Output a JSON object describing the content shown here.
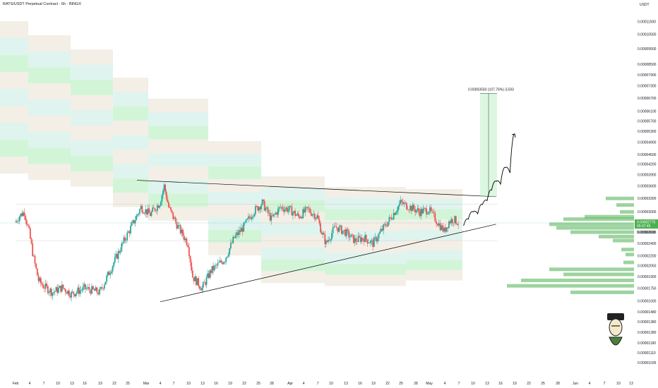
{
  "header": {
    "title": "RATS/USDT Perpetual Contract · 6h · BINGX",
    "currency": "USDT"
  },
  "colors": {
    "up": "#26a69a",
    "down": "#ef5350",
    "band_green": "#9be8a8",
    "band_beige": "#e4dcc8",
    "band_teal": "#b9e6dc",
    "price_badge": "#4caf50",
    "volume_profile": "#4caf50",
    "trendline": "#000000"
  },
  "chart_data": {
    "type": "candlestick",
    "title": "RATS/USDT Perpetual Contract · 6h · BINGX",
    "y_axis": {
      "unit": "USDT",
      "scale": "log",
      "range": [
        9.75e-06,
        0.00013
      ],
      "ticks": [
        "0.00011500",
        "0.00010500",
        "0.00009500",
        "0.00008500",
        "0.00007900",
        "0.00007300",
        "0.00006700",
        "0.00006100",
        "0.00005700",
        "0.00005300",
        "0.00004900",
        "0.00004500",
        "0.00004200",
        "0.00003900",
        "0.00003600",
        "0.00003300",
        "0.00003000",
        "0.00002600",
        "0.00002400",
        "0.00002200",
        "0.00002050",
        "0.00001900",
        "0.00001750",
        "0.00001600",
        "0.00001480",
        "0.00001380",
        "0.00001280",
        "0.00001190",
        "0.00001110",
        "0.00001035"
      ]
    },
    "x_axis": {
      "ticks": [
        "Feb",
        "4",
        "7",
        "10",
        "13",
        "16",
        "19",
        "22",
        "25",
        "Mar",
        "4",
        "7",
        "10",
        "13",
        "16",
        "19",
        "22",
        "25",
        "28",
        "Apr",
        "4",
        "7",
        "10",
        "13",
        "16",
        "19",
        "22",
        "25",
        "28",
        "May",
        "4",
        "7",
        "10",
        "13",
        "16",
        "19",
        "22",
        "25",
        "28",
        "Jun",
        "4",
        "7",
        "10",
        "13"
      ]
    },
    "last_price": {
      "price": "0.00002775",
      "countdown": "05:07:45",
      "low_label": "0.00002600",
      "value": 2.775e-05
    },
    "measurement": {
      "label": "0.00003593 (107.76%) 3,593",
      "from": 3.334e-05,
      "to": 6.927e-05
    },
    "trendlines": [
      {
        "name": "descending resistance",
        "from": {
          "date": "Feb 27",
          "price": 3.75e-05
        },
        "to": {
          "date": "May 15",
          "price": 3.34e-05
        }
      },
      {
        "name": "ascending support",
        "from": {
          "date": "Mar 4",
          "price": 1.59e-05
        },
        "to": {
          "date": "May 15",
          "price": 2.75e-05
        }
      }
    ],
    "projection_path": [
      {
        "date": "May 8",
        "price": 2.72e-05
      },
      {
        "date": "May 9",
        "price": 2.85e-05
      },
      {
        "date": "May 10",
        "price": 3e-05
      },
      {
        "date": "May 11",
        "price": 2.96e-05
      },
      {
        "date": "May 12",
        "price": 3.16e-05
      },
      {
        "date": "May 13",
        "price": 3.25e-05
      },
      {
        "date": "May 14",
        "price": 3.5e-05
      },
      {
        "date": "May 15",
        "price": 3.72e-05
      },
      {
        "date": "May 16",
        "price": 3.65e-05
      },
      {
        "date": "May 17",
        "price": 4.1e-05
      },
      {
        "date": "May 18",
        "price": 3.95e-05
      },
      {
        "date": "May 19",
        "price": 5.2e-05
      }
    ],
    "key_levels": [
      {
        "name": "upper channel",
        "from": "Feb 1",
        "to": "Jun 13",
        "price": 3.17e-05
      },
      {
        "name": "lower channel",
        "from": "Feb 1",
        "to": "Jun 13",
        "price": 2.45e-05
      }
    ],
    "price_path": [
      {
        "date": "Feb 1",
        "price": 2.78e-05
      },
      {
        "date": "Feb 2",
        "price": 2.92e-05
      },
      {
        "date": "Feb 3",
        "price": 3e-05
      },
      {
        "date": "Feb 4",
        "price": 2.6e-05
      },
      {
        "date": "Feb 5",
        "price": 2.15e-05
      },
      {
        "date": "Feb 6",
        "price": 1.85e-05
      },
      {
        "date": "Feb 7",
        "price": 1.78e-05
      },
      {
        "date": "Feb 9",
        "price": 1.7e-05
      },
      {
        "date": "Feb 11",
        "price": 1.76e-05
      },
      {
        "date": "Feb 13",
        "price": 1.68e-05
      },
      {
        "date": "Feb 16",
        "price": 1.75e-05
      },
      {
        "date": "Feb 19",
        "price": 1.7e-05
      },
      {
        "date": "Feb 20",
        "price": 1.82e-05
      },
      {
        "date": "Feb 22",
        "price": 2.1e-05
      },
      {
        "date": "Feb 24",
        "price": 2.4e-05
      },
      {
        "date": "Feb 26",
        "price": 2.72e-05
      },
      {
        "date": "Feb 28",
        "price": 3.1e-05
      },
      {
        "date": "Mar 2",
        "price": 2.95e-05
      },
      {
        "date": "Mar 4",
        "price": 3.2e-05
      },
      {
        "date": "Mar 5",
        "price": 3.6e-05
      },
      {
        "date": "Mar 6",
        "price": 3.1e-05
      },
      {
        "date": "Mar 8",
        "price": 2.7e-05
      },
      {
        "date": "Mar 10",
        "price": 2.4e-05
      },
      {
        "date": "Mar 11",
        "price": 1.9e-05
      },
      {
        "date": "Mar 13",
        "price": 1.75e-05
      },
      {
        "date": "Mar 15",
        "price": 1.98e-05
      },
      {
        "date": "Mar 18",
        "price": 2.15e-05
      },
      {
        "date": "Mar 20",
        "price": 2.5e-05
      },
      {
        "date": "Mar 22",
        "price": 2.7e-05
      },
      {
        "date": "Mar 24",
        "price": 3e-05
      },
      {
        "date": "Mar 26",
        "price": 3.2e-05
      },
      {
        "date": "Mar 28",
        "price": 2.85e-05
      },
      {
        "date": "Mar 30",
        "price": 3.1e-05
      },
      {
        "date": "Apr 1",
        "price": 3.05e-05
      },
      {
        "date": "Apr 3",
        "price": 2.9e-05
      },
      {
        "date": "Apr 5",
        "price": 3.05e-05
      },
      {
        "date": "Apr 7",
        "price": 2.9e-05
      },
      {
        "date": "Apr 8",
        "price": 2.6e-05
      },
      {
        "date": "Apr 9",
        "price": 2.4e-05
      },
      {
        "date": "Apr 11",
        "price": 2.7e-05
      },
      {
        "date": "Apr 13",
        "price": 2.6e-05
      },
      {
        "date": "Apr 15",
        "price": 2.45e-05
      },
      {
        "date": "Apr 17",
        "price": 2.5e-05
      },
      {
        "date": "Apr 19",
        "price": 2.4e-05
      },
      {
        "date": "Apr 21",
        "price": 2.65e-05
      },
      {
        "date": "Apr 23",
        "price": 2.9e-05
      },
      {
        "date": "Apr 25",
        "price": 3.2e-05
      },
      {
        "date": "Apr 27",
        "price": 3.1e-05
      },
      {
        "date": "Apr 29",
        "price": 3e-05
      },
      {
        "date": "May 1",
        "price": 3.05e-05
      },
      {
        "date": "May 3",
        "price": 2.75e-05
      },
      {
        "date": "May 4",
        "price": 2.62e-05
      },
      {
        "date": "May 5",
        "price": 2.8e-05
      },
      {
        "date": "May 6",
        "price": 2.85e-05
      },
      {
        "date": "May 7",
        "price": 2.78e-05
      }
    ]
  }
}
